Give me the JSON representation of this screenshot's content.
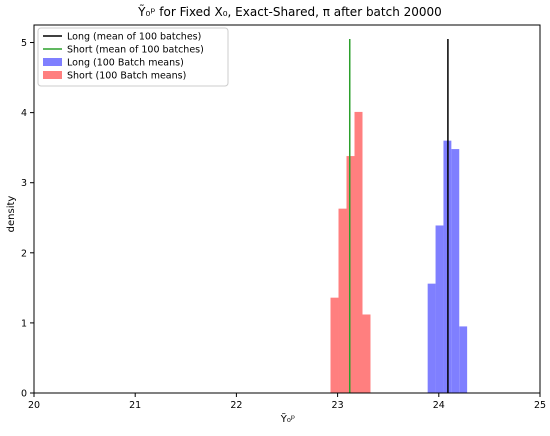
{
  "chart_data": {
    "type": "histogram",
    "title": "Ỹ₀ᵖ for Fixed X₀, Exact-Shared, π after batch 20000",
    "xlabel": "Ỹ₀ᵖ",
    "ylabel": "density",
    "xlim": [
      20,
      25
    ],
    "ylim": [
      0,
      5.25
    ],
    "xticks": [
      20,
      21,
      22,
      23,
      24,
      25
    ],
    "yticks": [
      0,
      1,
      2,
      3,
      4,
      5
    ],
    "grid": false,
    "legend_position": "top-left",
    "vlines": [
      {
        "name": "Long (mean of 100 batches)",
        "x": 24.09,
        "ymax": 5.05,
        "color": "#000000"
      },
      {
        "name": "Short (mean of 100 batches)",
        "x": 23.12,
        "ymax": 5.05,
        "color": "#2ca02c"
      }
    ],
    "series": [
      {
        "name": "Long (100 Batch means)",
        "color": "#7f7fff",
        "bin_width": 0.078,
        "bins": [
          {
            "x0": 23.89,
            "density": 1.56
          },
          {
            "x0": 23.968,
            "density": 2.39
          },
          {
            "x0": 24.046,
            "density": 3.6
          },
          {
            "x0": 24.124,
            "density": 3.48
          },
          {
            "x0": 24.202,
            "density": 0.95
          }
        ]
      },
      {
        "name": "Short (100 Batch means)",
        "color": "#ff7f7f",
        "bin_width": 0.079,
        "bins": [
          {
            "x0": 22.93,
            "density": 1.36
          },
          {
            "x0": 23.009,
            "density": 2.63
          },
          {
            "x0": 23.088,
            "density": 3.38
          },
          {
            "x0": 23.167,
            "density": 4.01
          },
          {
            "x0": 23.246,
            "density": 1.12
          }
        ]
      }
    ]
  }
}
